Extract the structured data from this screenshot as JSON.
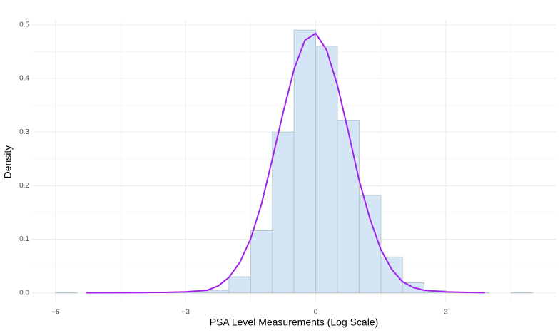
{
  "chart_data": {
    "type": "histogram",
    "x_label": "PSA Level Measurements (Log Scale)",
    "y_label": "Density",
    "bins": [
      -6,
      -5.5,
      -5,
      -4.5,
      -4,
      -3.5,
      -3,
      -2.5,
      -2,
      -1.5,
      -1,
      -0.5,
      0,
      0.5,
      1,
      1.5,
      2,
      2.5,
      3,
      3.5,
      4,
      4.5,
      5
    ],
    "values": [
      0.001,
      0,
      0,
      0.001,
      0,
      0.001,
      0.002,
      0.005,
      0.03,
      0.116,
      0.3,
      0.49,
      0.46,
      0.322,
      0.182,
      0.067,
      0.019,
      0.004,
      0.001,
      0.001,
      0,
      0.001
    ],
    "color": "#d4e6f5",
    "edge_color": "#b8c4cc",
    "density": {
      "color": "#a020f0",
      "x": [
        -5.3,
        -4.5,
        -3.5,
        -3,
        -2.5,
        -2.25,
        -2,
        -1.75,
        -1.5,
        -1.25,
        -1,
        -0.75,
        -0.5,
        -0.25,
        0,
        0.25,
        0.5,
        0.75,
        1,
        1.25,
        1.5,
        1.75,
        2,
        2.25,
        2.5,
        3,
        3.5,
        3.9
      ],
      "values": [
        0.0003,
        0.0005,
        0.001,
        0.002,
        0.005,
        0.013,
        0.029,
        0.057,
        0.101,
        0.166,
        0.25,
        0.337,
        0.417,
        0.471,
        0.484,
        0.453,
        0.387,
        0.301,
        0.21,
        0.138,
        0.081,
        0.044,
        0.021,
        0.01,
        0.005,
        0.002,
        0.001,
        0.0005
      ]
    },
    "xlim": [
      -6.54,
      5.55
    ],
    "ylim": [
      -0.019,
      0.509
    ],
    "xticks": [
      {
        "value": -6,
        "label": "−6"
      },
      {
        "value": -3,
        "label": "−3"
      },
      0,
      3
    ],
    "yticks": [
      {
        "value": 0,
        "label": "0.0"
      },
      0.1,
      0.2,
      0.3,
      0.4,
      0.5
    ],
    "grid": true
  }
}
